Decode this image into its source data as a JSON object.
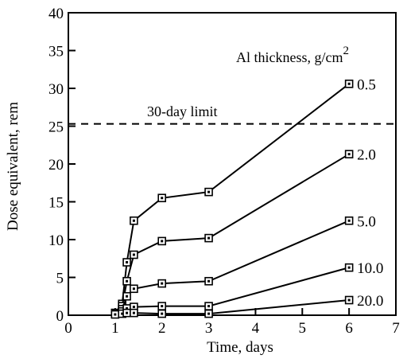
{
  "chart_data": {
    "type": "line",
    "title": "",
    "xlabel": "Time, days",
    "ylabel": "Dose equivalent, rem",
    "xlim": [
      0,
      7
    ],
    "ylim": [
      0,
      40
    ],
    "xticks": [
      0,
      1,
      2,
      3,
      4,
      5,
      6,
      7
    ],
    "yticks": [
      0,
      5,
      10,
      15,
      20,
      25,
      30,
      35,
      40
    ],
    "grid": false,
    "legend_title": "Al thickness, g/cm",
    "legend_title_superscript": "2",
    "reference_line": {
      "label": "30-day limit",
      "y": 25.3
    },
    "series": [
      {
        "name": "0.5",
        "x": [
          1,
          1.15,
          1.25,
          1.4,
          2,
          3,
          6
        ],
        "y": [
          0.3,
          1.5,
          7,
          12.5,
          15.5,
          16.3,
          30.6
        ]
      },
      {
        "name": "2.0",
        "x": [
          1,
          1.15,
          1.25,
          1.4,
          2,
          3,
          6
        ],
        "y": [
          0.3,
          1.2,
          4.5,
          8,
          9.8,
          10.2,
          21.3
        ]
      },
      {
        "name": "5.0",
        "x": [
          1,
          1.15,
          1.25,
          1.4,
          2,
          3,
          6
        ],
        "y": [
          0.2,
          0.8,
          2.5,
          3.5,
          4.2,
          4.5,
          12.5
        ]
      },
      {
        "name": "10.0",
        "x": [
          1,
          1.15,
          1.25,
          1.4,
          2,
          3,
          6
        ],
        "y": [
          0.2,
          0.5,
          0.9,
          1.1,
          1.2,
          1.2,
          6.3
        ]
      },
      {
        "name": "20.0",
        "x": [
          1,
          1.15,
          1.25,
          1.4,
          2,
          3,
          6
        ],
        "y": [
          0.1,
          0.2,
          0.3,
          0.3,
          0.2,
          0.2,
          2.0
        ]
      }
    ]
  }
}
